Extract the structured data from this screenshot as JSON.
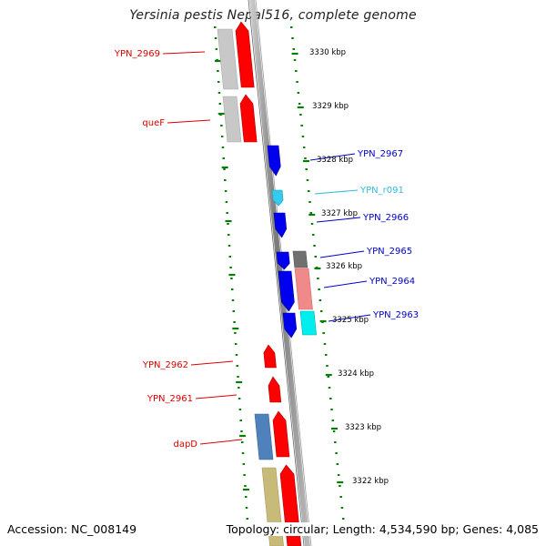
{
  "title": "Yersinia pestis Nepal516, complete genome",
  "footer": {
    "accession_label": "Accession: NC_008149",
    "stats": "Topology: circular; Length: 4,534,590 bp; Genes: 4,085"
  },
  "colors": {
    "plus_strand": "#ff0000",
    "minus_strand": "#0000ee",
    "rna": "#33ccee",
    "cog_grey": "#c8c8c8",
    "cog_pink": "#f08a8a",
    "cog_cyan": "#00eeee",
    "cog_steelblue": "#4f81bd",
    "cog_khaki": "#c8bb7a",
    "ticks": "#008000",
    "backbone": "#888888"
  },
  "kbp_labels": [
    "3330 kbp",
    "3329 kbp",
    "3328 kbp",
    "3327 kbp",
    "3326 kbp",
    "3325 kbp",
    "3324 kbp",
    "3323 kbp",
    "3322 kbp"
  ],
  "gene_labels_left": [
    {
      "text": "YPN_2969",
      "color": "#dd0000"
    },
    {
      "text": "queF",
      "color": "#dd0000"
    },
    {
      "text": "YPN_2962",
      "color": "#dd0000"
    },
    {
      "text": "YPN_2961",
      "color": "#dd0000"
    },
    {
      "text": "dapD",
      "color": "#dd0000"
    }
  ],
  "gene_labels_right": [
    {
      "text": "YPN_2967",
      "color": "#0000cc"
    },
    {
      "text": "YPN_r091",
      "color": "#33bbdd"
    },
    {
      "text": "YPN_2966",
      "color": "#0000cc"
    },
    {
      "text": "YPN_2965",
      "color": "#0000cc"
    },
    {
      "text": "YPN_2964",
      "color": "#0000cc"
    },
    {
      "text": "YPN_2963",
      "color": "#0000cc"
    }
  ]
}
